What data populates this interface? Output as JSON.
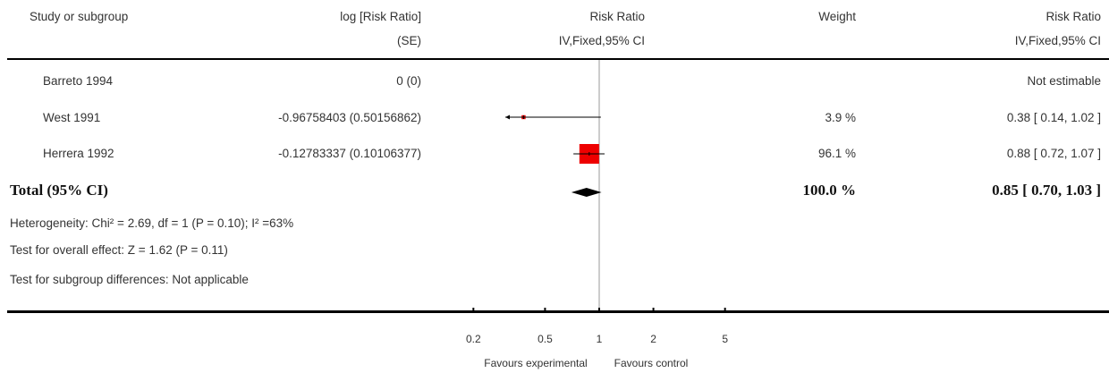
{
  "header": {
    "study": "Study or subgroup",
    "logrr": "log [Risk Ratio]",
    "se": "(SE)",
    "rr_plot": "Risk Ratio",
    "rr_plot_method": "IV,Fixed,95% CI",
    "weight": "Weight",
    "rr": "Risk Ratio",
    "rr_method": "IV,Fixed,95% CI"
  },
  "studies": [
    {
      "name": "Barreto 1994",
      "logrr_se": "0 (0)",
      "weight": "",
      "rr_ci": "Not estimable"
    },
    {
      "name": "West 1991",
      "logrr_se": "-0.96758403 (0.50156862)",
      "weight": "3.9 %",
      "rr_ci": "0.38 [ 0.14, 1.02 ]"
    },
    {
      "name": "Herrera 1992",
      "logrr_se": "-0.12783337 (0.10106377)",
      "weight": "96.1 %",
      "rr_ci": "0.88 [ 0.72, 1.07 ]"
    }
  ],
  "total": {
    "label": "Total (95% CI)",
    "weight": "100.0 %",
    "rr_ci": "0.85 [ 0.70, 1.03 ]"
  },
  "footnotes": {
    "heterogeneity": "Heterogeneity: Chi² = 2.69, df = 1 (P = 0.10); I² =63%",
    "overall": "Test for overall effect: Z = 1.62 (P = 0.11)",
    "subgroup": "Test for subgroup differences: Not applicable"
  },
  "axis": {
    "favours_left": "Favours experimental",
    "favours_right": "Favours control"
  },
  "colors": {
    "study_marker": "#ee0000",
    "diamond": "#000000",
    "ref_line": "#999999"
  },
  "chart_data": {
    "type": "forest",
    "scale": "log",
    "xlim": [
      0.2,
      5
    ],
    "ticks": [
      0.2,
      0.5,
      1,
      2,
      5
    ],
    "tick_labels": [
      "0.2",
      "0.5",
      "1",
      "2",
      "5"
    ],
    "null_value": 1,
    "studies": [
      {
        "name": "Barreto 1994",
        "estimate": null,
        "lower": null,
        "upper": null,
        "weight": null
      },
      {
        "name": "West 1991",
        "estimate": 0.38,
        "lower": 0.14,
        "upper": 1.02,
        "weight": 3.9
      },
      {
        "name": "Herrera 1992",
        "estimate": 0.88,
        "lower": 0.72,
        "upper": 1.07,
        "weight": 96.1
      }
    ],
    "pooled": {
      "estimate": 0.85,
      "lower": 0.7,
      "upper": 1.03
    }
  }
}
